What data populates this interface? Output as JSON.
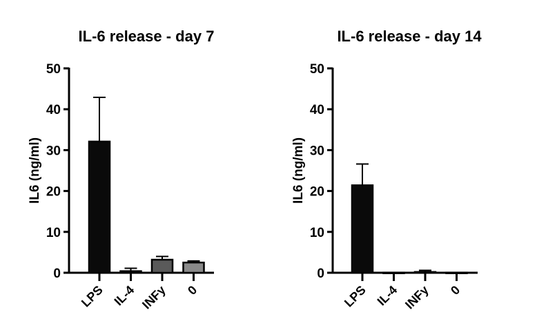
{
  "chart_data": [
    {
      "type": "bar",
      "title": "IL-6 release -  day 7",
      "ylabel": "IL6 (ng/ml)",
      "xlabel": "",
      "ylim": [
        0,
        50
      ],
      "yticks": [
        0,
        10,
        20,
        30,
        40,
        50
      ],
      "categories": [
        "LPS",
        "IL-4",
        "INFy",
        "0"
      ],
      "values": [
        32.1,
        0.4,
        3.2,
        2.5
      ],
      "error_up": [
        10.8,
        0.7,
        0.8,
        0.4
      ],
      "colors": [
        "#0a0a0a",
        "#0a0a0a",
        "#5a5a5a",
        "#8a8a8a"
      ],
      "grid": false
    },
    {
      "type": "bar",
      "title": "IL-6 release -  day 14",
      "ylabel": "IL6 (ng/ml)",
      "xlabel": "",
      "ylim": [
        0,
        50
      ],
      "yticks": [
        0,
        10,
        20,
        30,
        40,
        50
      ],
      "categories": [
        "LPS",
        "IL-4",
        "INFy",
        "0"
      ],
      "values": [
        21.4,
        0.05,
        0.2,
        0.05
      ],
      "error_up": [
        5.2,
        0,
        0.4,
        0
      ],
      "colors": [
        "#0a0a0a",
        "#0a0a0a",
        "#5a5a5a",
        "#8a8a8a"
      ],
      "grid": false
    }
  ]
}
